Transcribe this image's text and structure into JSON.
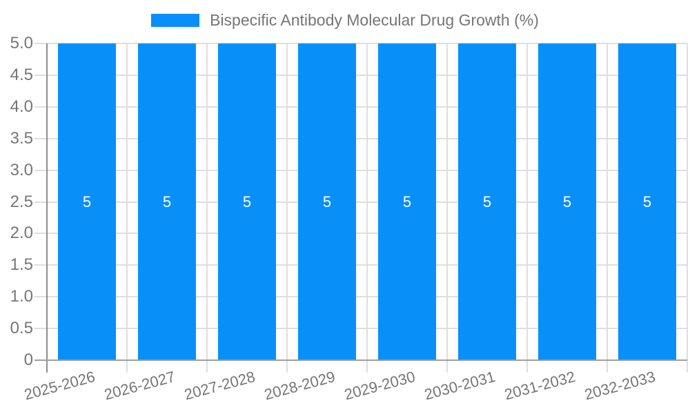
{
  "legend": {
    "label": "Bispecific Antibody Molecular Drug Growth (%)"
  },
  "colors": {
    "bar": "#0990f8",
    "bar_label": "#ffffff",
    "grid": "#dedede",
    "axis_x": "#9e9e9e",
    "axis_y": "#8c8c8c",
    "text": "#757575",
    "background": "#ffffff"
  },
  "chart_data": {
    "type": "bar",
    "title": "",
    "xlabel": "",
    "ylabel": "",
    "categories": [
      "2025-2026",
      "2026-2027",
      "2027-2028",
      "2028-2029",
      "2029-2030",
      "2030-2031",
      "2031-2032",
      "2032-2033"
    ],
    "values": [
      5,
      5,
      5,
      5,
      5,
      5,
      5,
      5
    ],
    "bar_labels": [
      "5",
      "5",
      "5",
      "5",
      "5",
      "5",
      "5",
      "5"
    ],
    "series_name": "Bispecific Antibody Molecular Drug Growth (%)",
    "ylim": [
      0,
      5
    ],
    "ytick_step": 0.5,
    "ytick_labels": [
      "0",
      "0.5",
      "1.0",
      "1.5",
      "2.0",
      "2.5",
      "3.0",
      "3.5",
      "4.0",
      "4.5",
      "5.0"
    ],
    "grid": true,
    "legend_position": "top"
  }
}
